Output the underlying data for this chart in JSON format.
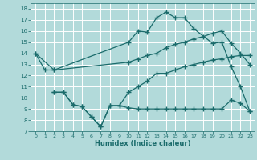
{
  "xlabel": "Humidex (Indice chaleur)",
  "xlim": [
    -0.5,
    23.5
  ],
  "ylim": [
    7,
    18.5
  ],
  "yticks": [
    7,
    8,
    9,
    10,
    11,
    12,
    13,
    14,
    15,
    16,
    17,
    18
  ],
  "xticks": [
    0,
    1,
    2,
    3,
    4,
    5,
    6,
    7,
    8,
    9,
    10,
    11,
    12,
    13,
    14,
    15,
    16,
    17,
    18,
    19,
    20,
    21,
    22,
    23
  ],
  "bg_color": "#b2dada",
  "grid_color": "#ffffff",
  "line_color": "#1a6b6b",
  "line1_x": [
    0,
    1,
    2,
    10,
    11,
    12,
    13,
    14,
    15,
    16,
    17,
    19,
    20,
    21,
    22,
    23
  ],
  "line1_y": [
    14.0,
    12.5,
    12.5,
    15.0,
    16.0,
    15.9,
    17.2,
    17.7,
    17.2,
    17.2,
    16.2,
    14.9,
    15.0,
    12.8,
    11.0,
    8.8
  ],
  "line2_x": [
    0,
    2,
    10,
    11,
    12,
    13,
    14,
    15,
    16,
    17,
    18,
    19,
    20,
    21,
    22,
    23
  ],
  "line2_y": [
    14.0,
    12.5,
    13.2,
    13.5,
    13.8,
    14.0,
    14.5,
    14.8,
    15.0,
    15.3,
    15.5,
    15.8,
    16.0,
    14.9,
    14.0,
    13.0
  ],
  "line3_x": [
    2,
    3,
    4,
    5,
    6,
    7,
    8,
    9,
    10,
    11,
    12,
    13,
    14,
    15,
    16,
    17,
    18,
    19,
    20,
    21,
    22,
    23
  ],
  "line3_y": [
    10.5,
    10.5,
    9.4,
    9.2,
    8.3,
    7.4,
    9.3,
    9.3,
    10.5,
    11.0,
    11.5,
    12.2,
    12.2,
    12.5,
    12.8,
    13.0,
    13.2,
    13.4,
    13.5,
    13.7,
    13.8,
    13.8
  ],
  "line4_x": [
    2,
    3,
    4,
    5,
    6,
    7,
    8,
    9,
    10,
    11,
    12,
    13,
    14,
    15,
    16,
    17,
    18,
    19,
    20,
    21,
    22,
    23
  ],
  "line4_y": [
    10.5,
    10.5,
    9.4,
    9.2,
    8.3,
    7.4,
    9.3,
    9.3,
    9.1,
    9.0,
    9.0,
    9.0,
    9.0,
    9.0,
    9.0,
    9.0,
    9.0,
    9.0,
    9.0,
    9.8,
    9.5,
    8.8
  ],
  "marker": "+",
  "markersize": 4,
  "linewidth": 0.9
}
